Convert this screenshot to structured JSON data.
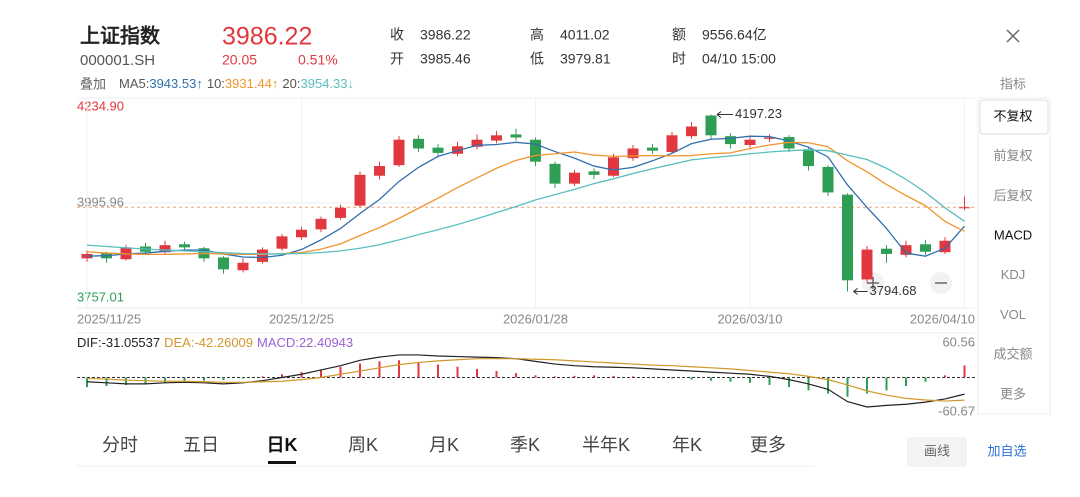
{
  "header": {
    "name": "上证指数",
    "code": "000001.SH",
    "price": 3986.22,
    "change": 20.05,
    "change_pct": "0.51%",
    "stats": [
      {
        "label": "收",
        "value": 3986.22
      },
      {
        "label": "开",
        "value": 3985.46
      },
      {
        "label": "高",
        "value": 4011.02
      },
      {
        "label": "低",
        "value": 3979.81
      },
      {
        "label": "额",
        "value": "9556.64亿"
      },
      {
        "label": "时",
        "value": "04/10 15:00"
      }
    ]
  },
  "overlay": "叠加",
  "indicator_button": "指标",
  "chart_data": [
    {
      "type": "candlestick",
      "categories": [
        "2025/11/25",
        null,
        null,
        null,
        null,
        null,
        null,
        null,
        null,
        null,
        null,
        "2025/12/25",
        null,
        null,
        null,
        null,
        null,
        null,
        null,
        null,
        null,
        null,
        null,
        "2026/01/28",
        null,
        null,
        null,
        null,
        null,
        null,
        null,
        null,
        null,
        null,
        "2026/03/10",
        null,
        null,
        null,
        null,
        null,
        null,
        null,
        null,
        null,
        null,
        "2026/04/10"
      ],
      "open": [
        3870,
        3882,
        3868,
        3897,
        3884,
        3902,
        3893,
        3872,
        3843,
        3862,
        3892,
        3918,
        3936,
        3962,
        3990,
        4058,
        4082,
        4142,
        4122,
        4108,
        4124,
        4138,
        4152,
        4140,
        4085,
        4040,
        4068,
        4058,
        4098,
        4122,
        4112,
        4148,
        4195,
        4148,
        4128,
        4142,
        4146,
        4118,
        4078,
        4015,
        3822,
        3892,
        3878,
        3902,
        3884,
        3985.46
      ],
      "close": [
        3880,
        3870,
        3895,
        3885,
        3900,
        3895,
        3870,
        3845,
        3860,
        3890,
        3920,
        3935,
        3960,
        3985,
        4060,
        4080,
        4140,
        4120,
        4110,
        4125,
        4140,
        4150,
        4145,
        4090,
        4040,
        4065,
        4060,
        4100,
        4120,
        4115,
        4150,
        4170,
        4150,
        4130,
        4140,
        4145,
        4120,
        4080,
        4020,
        3820,
        3890,
        3880,
        3900,
        3885,
        3910,
        3986.22
      ],
      "high": [
        3888,
        3885,
        3900,
        3905,
        3910,
        3908,
        3896,
        3875,
        3870,
        3895,
        3925,
        3942,
        3965,
        3992,
        4068,
        4090,
        4148,
        4150,
        4130,
        4135,
        4152,
        4160,
        4165,
        4145,
        4090,
        4072,
        4075,
        4108,
        4128,
        4130,
        4158,
        4180,
        4197.23,
        4155,
        4148,
        4152,
        4150,
        4122,
        4082,
        4018,
        3898,
        3900,
        3910,
        3912,
        3918,
        4011.02
      ],
      "low": [
        3862,
        3860,
        3865,
        3878,
        3880,
        3885,
        3862,
        3835,
        3838,
        3858,
        3888,
        3912,
        3930,
        3958,
        3986,
        4050,
        4078,
        4112,
        4100,
        4102,
        4118,
        4132,
        4138,
        4080,
        4030,
        4035,
        4050,
        4055,
        4092,
        4108,
        4108,
        4142,
        4140,
        4120,
        4122,
        4135,
        4112,
        4070,
        4012,
        3794.68,
        3815,
        3860,
        3872,
        3878,
        3880,
        3979.81
      ],
      "up_color": "#e0383e",
      "down_color": "#2f9e55",
      "series": [
        {
          "name": "MA5:",
          "color": "#2f6fae",
          "last": 3943.53,
          "trend": "↑",
          "values": [
            3875,
            3876,
            3880,
            3882,
            3886,
            3889,
            3889,
            3880,
            3873,
            3872,
            3877,
            3890,
            3912,
            3938,
            3972,
            4004,
            4045,
            4077,
            4102,
            4115,
            4127,
            4129,
            4134,
            4130,
            4113,
            4098,
            4080,
            4071,
            4077,
            4092,
            4109,
            4131,
            4141,
            4143,
            4148,
            4147,
            4137,
            4123,
            4101,
            4037,
            3986,
            3938,
            3882,
            3875,
            3893,
            3943.53
          ]
        },
        {
          "name": "10:",
          "color": "#f0952e",
          "last": 3931.44,
          "trend": "↑",
          "values": [
            3885,
            3882,
            3880,
            3879,
            3879,
            3880,
            3881,
            3880,
            3879,
            3879,
            3881,
            3883,
            3891,
            3903,
            3922,
            3940,
            3961,
            3984,
            4007,
            4031,
            4053,
            4075,
            4093,
            4104,
            4108,
            4112,
            4105,
            4102,
            4103,
            4104,
            4103,
            4104,
            4108,
            4110,
            4120,
            4128,
            4134,
            4133,
            4124,
            4092,
            4067,
            4038,
            4013,
            3990,
            3954,
            3931.44
          ]
        },
        {
          "name": "20:",
          "color": "#5bbfc0",
          "last": 3954.33,
          "trend": "↓",
          "values": [
            3900,
            3897,
            3894,
            3891,
            3889,
            3887,
            3885,
            3883,
            3881,
            3880,
            3880,
            3881,
            3883,
            3887,
            3893,
            3901,
            3912,
            3924,
            3935,
            3947,
            3960,
            3974,
            3988,
            4003,
            4015,
            4027,
            4040,
            4051,
            4063,
            4074,
            4084,
            4094,
            4099,
            4103,
            4108,
            4112,
            4115,
            4117,
            4115,
            4105,
            4095,
            4075,
            4050,
            4020,
            3985,
            3954.33
          ]
        }
      ],
      "ylim": [
        3757.01,
        4234.9
      ],
      "yticks": [
        {
          "value": 4234.9,
          "label": "4234.90"
        },
        3995.96,
        3757.01
      ],
      "max_label": 4197.23,
      "min_label": 3794.68
    },
    {
      "type": "macd",
      "ylim": [
        -60.67,
        60.56
      ],
      "yticks": [
        60.56,
        -60.67
      ],
      "series": [
        {
          "name": "DIF:",
          "color": "#222222",
          "last": -31.05537,
          "values": [
            -8,
            -10,
            -12,
            -12,
            -10,
            -9,
            -10,
            -12,
            -10,
            -6,
            0,
            6,
            14,
            22,
            32,
            38,
            42,
            42,
            40,
            39,
            38,
            37,
            35,
            30,
            25,
            22,
            20,
            19,
            18,
            16,
            14,
            12,
            10,
            8,
            6,
            2,
            -4,
            -12,
            -22,
            -45,
            -55,
            -52,
            -50,
            -46,
            -40,
            -31.05537
          ]
        },
        {
          "name": "DEA:",
          "color": "#d0982a",
          "last": -42.26009,
          "values": [
            -2,
            -3,
            -5,
            -6,
            -7,
            -7,
            -8,
            -9,
            -9,
            -8,
            -7,
            -4,
            0,
            6,
            12,
            18,
            24,
            28,
            31,
            33,
            35,
            35,
            35,
            34,
            33,
            31,
            29,
            27,
            25,
            23,
            22,
            20,
            18,
            16,
            13,
            10,
            7,
            2,
            -4,
            -14,
            -25,
            -33,
            -39,
            -42,
            -44,
            -42.26009
          ]
        },
        {
          "name": "MACD:",
          "color": "#9b5fd0",
          "last": 22.40943,
          "values": [
            -18,
            -16,
            -14,
            -12,
            -10,
            -8,
            -6,
            -5,
            -2,
            2,
            6,
            10,
            14,
            20,
            26,
            30,
            32,
            28,
            24,
            20,
            16,
            12,
            8,
            4,
            2,
            3,
            4,
            3,
            2,
            1,
            -2,
            -4,
            -6,
            -8,
            -10,
            -14,
            -18,
            -24,
            -30,
            -36,
            -30,
            -24,
            -16,
            -8,
            4,
            22.40943
          ]
        }
      ]
    }
  ],
  "menu": [
    "不复权",
    "前复权",
    "后复权",
    "MACD",
    "KDJ",
    "VOL",
    "成交额",
    "更多"
  ],
  "tabs": [
    "分时",
    "五日",
    "日K",
    "周K",
    "月K",
    "季K",
    "半年K",
    "年K",
    "更多"
  ],
  "buttons": {
    "draw": "画线",
    "watch": "加自选"
  }
}
